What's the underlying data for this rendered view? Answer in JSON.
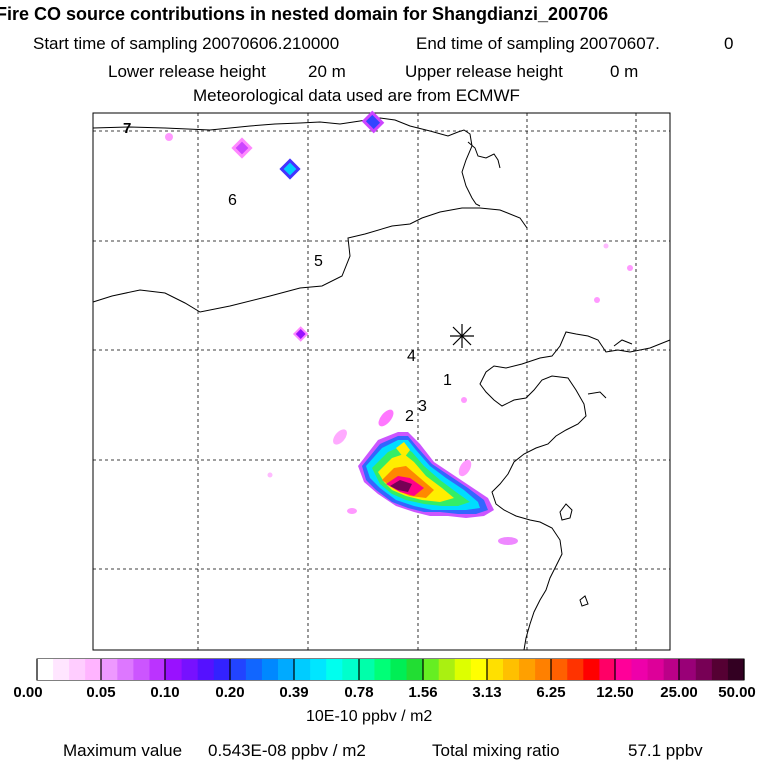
{
  "header": {
    "title": "Fire CO source contributions in nested domain for Shangdianzi_200706",
    "start_label": "Start time of sampling 20070606.210000",
    "end_label": "End time of sampling 20070607.",
    "end_suffix": "0",
    "lower_label": "Lower release height",
    "lower_value": "20 m",
    "upper_label": "Upper release height",
    "upper_value": "0 m",
    "met_label": "Meteorological data used are from ECMWF"
  },
  "map": {
    "receptor_marker": "asterisk-icon",
    "day_labels": [
      "7",
      "6",
      "5",
      "4",
      "1",
      "3",
      "2"
    ],
    "colors": {
      "coast": "#000000",
      "grid": "#000000",
      "plume_low": "#ff66ff",
      "plume_high": "#cc0077"
    }
  },
  "colorbar": {
    "labels": [
      "0.00",
      "0.05",
      "0.10",
      "0.20",
      "0.39",
      "0.78",
      "1.56",
      "3.13",
      "6.25",
      "12.50",
      "25.00",
      "50.00"
    ],
    "units": "10E-10 ppbv / m2",
    "colors": [
      "#ffffff",
      "#ffe6ff",
      "#ffcdff",
      "#ffb4ff",
      "#ee99ff",
      "#dd77ff",
      "#cc55ff",
      "#bb33ff",
      "#9911ff",
      "#7711ff",
      "#5511ff",
      "#3322ff",
      "#2244ff",
      "#1166ff",
      "#0088ff",
      "#00aaff",
      "#00ccff",
      "#00e6ff",
      "#00ffee",
      "#00ffcc",
      "#00ffaa",
      "#00ff77",
      "#00ee55",
      "#22dd33",
      "#66ee22",
      "#aaf011",
      "#ddff00",
      "#ffff00",
      "#ffe000",
      "#ffc000",
      "#ffa000",
      "#ff8000",
      "#ff6000",
      "#ff3300",
      "#ff0000",
      "#ff0066",
      "#ff0099",
      "#ee00aa",
      "#dd0099",
      "#bb0088",
      "#990077",
      "#770055",
      "#550033",
      "#330022"
    ]
  },
  "footer": {
    "max_label": "Maximum value",
    "max_value": "0.543E-08 ppbv / m2",
    "total_label": "Total mixing ratio",
    "total_value": "57.1 ppbv"
  }
}
